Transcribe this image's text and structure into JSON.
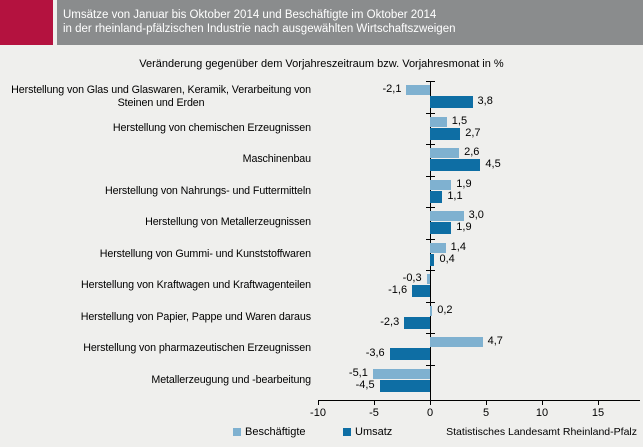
{
  "header": {
    "title_line1": "Umsätze von Januar bis Oktober 2014 und Beschäftigte im Oktober 2014",
    "title_line2": "in der rheinland-pfälzischen Industrie nach ausgewählten Wirtschaftszweigen"
  },
  "subtitle": "Veränderung gegenüber dem Vorjahreszeitraum bzw. Vorjahresmonat in %",
  "footer": "Statistisches Landesamt Rheinland-Pfalz",
  "colors": {
    "header_red": "#b4123f",
    "header_gray": "#8a8c8d",
    "background": "#efefed",
    "beschaeftigte": "#7fb1d0",
    "umsatz": "#0e6ea4"
  },
  "chart_data": {
    "type": "bar",
    "orientation": "horizontal",
    "title": "Umsätze von Januar bis Oktober 2014 und Beschäftigte im Oktober 2014 in der rheinland-pfälzischen Industrie nach ausgewählten Wirtschaftszweigen",
    "subtitle": "Veränderung gegenüber dem Vorjahreszeitraum bzw. Vorjahresmonat in %",
    "xlabel": "",
    "ylabel": "",
    "xlim": [
      -10,
      18.75
    ],
    "xticks": [
      -10,
      -5,
      0,
      5,
      10,
      15
    ],
    "grid": false,
    "legend_position": "bottom",
    "value_label_format": "german-decimal-comma",
    "categories": [
      "Herstellung von Glas und Glaswaren, Keramik, Verarbeitung von\nSteinen und Erden",
      "Herstellung von chemischen Erzeugnissen",
      "Maschinenbau",
      "Herstellung von Nahrungs- und Futtermitteln",
      "Herstellung von Metallerzeugnissen",
      "Herstellung von Gummi- und Kunststoffwaren",
      "Herstellung von Kraftwagen und Kraftwagenteilen",
      "Herstellung von Papier, Pappe und Waren daraus",
      "Herstellung von pharmazeutischen Erzeugnissen",
      "Metallerzeugung und -bearbeitung"
    ],
    "series": [
      {
        "name": "Beschäftigte",
        "color": "#7fb1d0",
        "values": [
          -2.1,
          1.5,
          2.6,
          1.9,
          3.0,
          1.4,
          -0.3,
          0.2,
          4.7,
          -5.1
        ]
      },
      {
        "name": "Umsatz",
        "color": "#0e6ea4",
        "values": [
          3.8,
          2.7,
          4.5,
          1.1,
          1.9,
          0.4,
          -1.6,
          -2.3,
          -3.6,
          -4.5
        ]
      }
    ]
  }
}
